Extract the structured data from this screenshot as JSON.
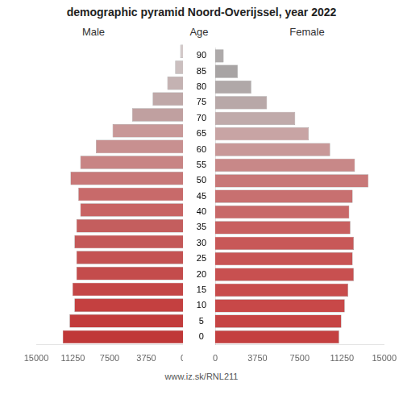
{
  "chart_data": {
    "type": "bar",
    "orientation": "horizontal",
    "title": "demographic pyramid Noord-Overijssel, year 2022",
    "ylabel": "Age",
    "footer": "www.iz.sk/RNL211",
    "categories": [
      90,
      85,
      80,
      75,
      70,
      65,
      60,
      55,
      50,
      45,
      40,
      35,
      30,
      25,
      20,
      15,
      10,
      5,
      0
    ],
    "series": [
      {
        "name": "Male",
        "colors": [
          "#d2c8c8",
          "#cbbfbf",
          "#c4b2b2",
          "#bfa8a8",
          "#c0a0a0",
          "#c89898",
          "#c89090",
          "#c88484",
          "#c87878",
          "#c86a6a",
          "#c86464",
          "#c45e5e",
          "#c45858",
          "#c45252",
          "#c44c4c",
          "#c44646",
          "#c44040",
          "#c23c3c",
          "#c03838"
        ],
        "values": [
          280,
          800,
          1600,
          3100,
          5200,
          7200,
          8900,
          10500,
          11500,
          10700,
          10500,
          10900,
          11100,
          10900,
          10900,
          11300,
          11100,
          11600,
          12300
        ]
      },
      {
        "name": "Female",
        "colors": [
          "#aeaaaa",
          "#a8a4a4",
          "#b0a8a8",
          "#b8a8a8",
          "#c0aaaa",
          "#c8a4a4",
          "#c89898",
          "#c88888",
          "#c87878",
          "#c87070",
          "#c86868",
          "#c86060",
          "#c85858",
          "#c85454",
          "#c85050",
          "#c84c4c",
          "#c84848",
          "#c64444",
          "#c44040"
        ],
        "values": [
          750,
          2000,
          3200,
          4600,
          7100,
          8300,
          10200,
          12400,
          13600,
          12200,
          11900,
          12000,
          12300,
          12200,
          12300,
          11800,
          11500,
          11200,
          11000
        ]
      }
    ],
    "xlim": [
      0,
      15000
    ],
    "xticks": [
      0,
      3750,
      7500,
      11250,
      15000
    ],
    "grid": false
  }
}
